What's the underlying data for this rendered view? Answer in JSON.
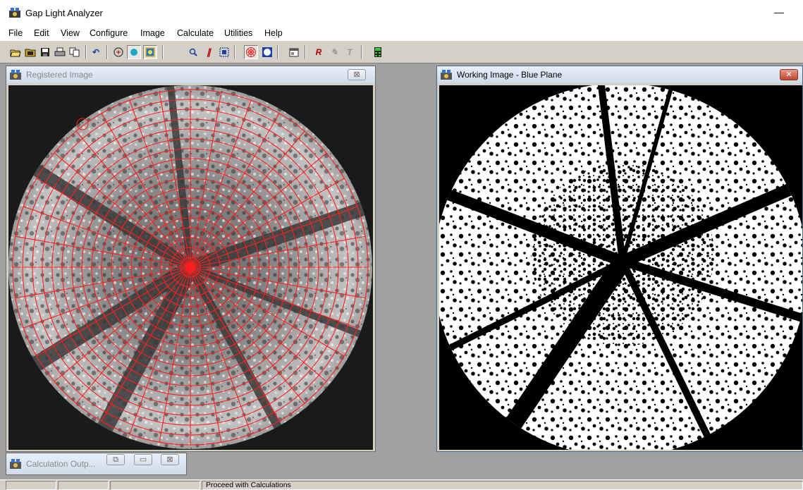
{
  "app": {
    "title": "Gap Light Analyzer",
    "minimize_glyph": "—"
  },
  "menu": [
    "File",
    "Edit",
    "View",
    "Configure",
    "Image",
    "Calculate",
    "Utilities",
    "Help"
  ],
  "toolbar_icons": [
    "open-folder-icon",
    "open-config-icon",
    "save-icon",
    "print-icon",
    "copy-icon",
    "undo-icon",
    "register-icon",
    "circle-select-icon",
    "square-select-icon",
    "zoom-icon",
    "threshold-icon",
    "crop-icon",
    "sky-grid-icon",
    "invert-icon",
    "properties-icon",
    "filter-r-icon",
    "edit-gray-icon",
    "text-icon",
    "calculator-icon"
  ],
  "windows": {
    "registered": {
      "title": "Registered Image",
      "close_glyph": "⊠"
    },
    "working": {
      "title": "Working Image  - Blue Plane",
      "close_glyph": "✕"
    },
    "calculation": {
      "title": "Calculation Outp...",
      "buttons": [
        "⧉",
        "▭",
        "⊠"
      ]
    }
  },
  "status": {
    "panels": [
      "",
      "",
      "",
      "Proceed with Calculations"
    ]
  },
  "colors": {
    "grid": "#ff1e1e",
    "title_active": "#cfdbe9",
    "close_active": "#c0462e"
  }
}
